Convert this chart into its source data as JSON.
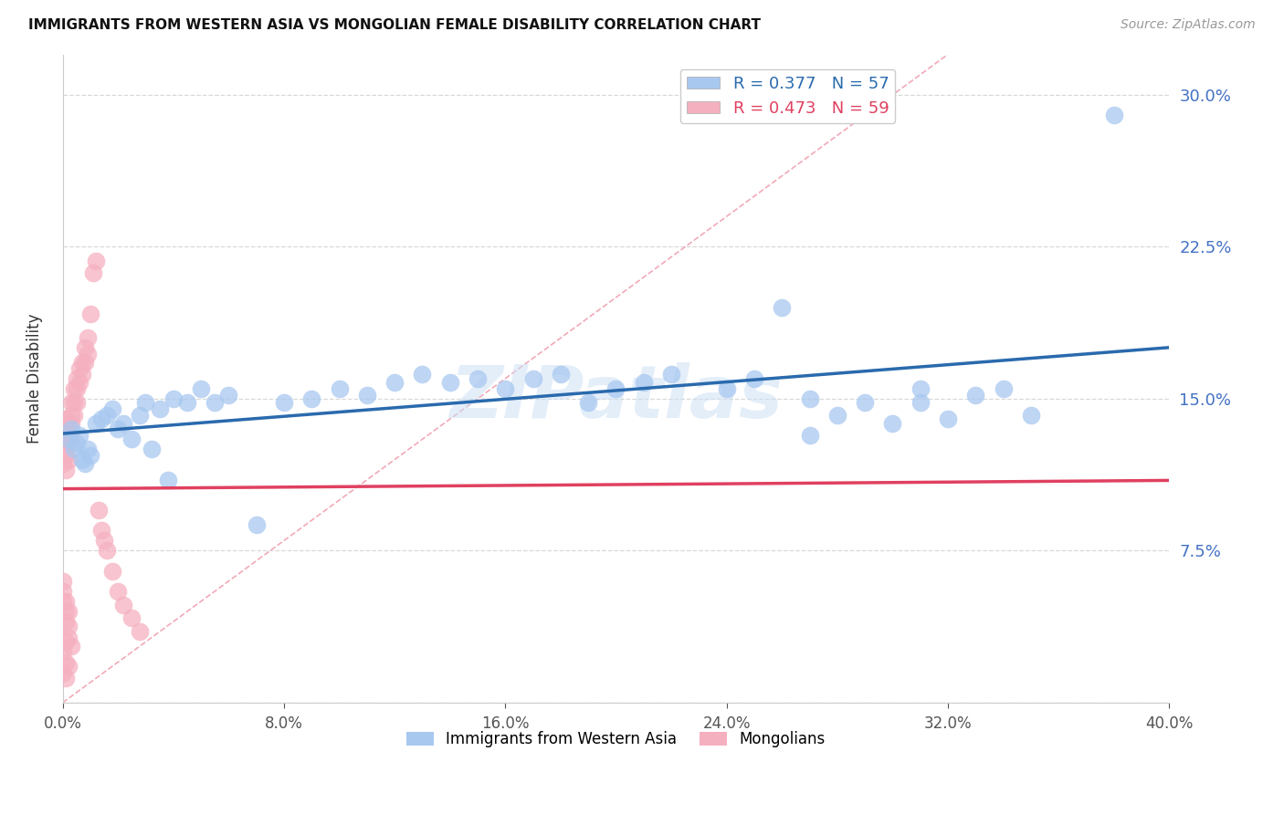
{
  "title": "IMMIGRANTS FROM WESTERN ASIA VS MONGOLIAN FEMALE DISABILITY CORRELATION CHART",
  "source": "Source: ZipAtlas.com",
  "ylabel": "Female Disability",
  "xlim": [
    0.0,
    0.4
  ],
  "ylim": [
    0.0,
    0.32
  ],
  "blue_R": 0.377,
  "blue_N": 57,
  "pink_R": 0.473,
  "pink_N": 59,
  "blue_color": "#a8c8f0",
  "pink_color": "#f5b0c0",
  "blue_line_color": "#2a6aad",
  "pink_line_color": "#e04060",
  "diag_line_color": "#f0a0b0",
  "watermark": "ZIPatlas",
  "legend_label_blue": "Immigrants from Western Asia",
  "legend_label_pink": "Mongolians",
  "ytick_vals": [
    0.0,
    0.075,
    0.15,
    0.225,
    0.3
  ],
  "xtick_vals": [
    0.0,
    0.08,
    0.16,
    0.24,
    0.32,
    0.4
  ],
  "right_axis_color": "#4472c4",
  "grid_color": "#d8d8d8",
  "blue_x": [
    0.002,
    0.003,
    0.004,
    0.005,
    0.006,
    0.007,
    0.008,
    0.009,
    0.01,
    0.012,
    0.014,
    0.016,
    0.018,
    0.02,
    0.022,
    0.025,
    0.028,
    0.03,
    0.032,
    0.035,
    0.038,
    0.04,
    0.045,
    0.05,
    0.055,
    0.06,
    0.07,
    0.08,
    0.09,
    0.1,
    0.11,
    0.12,
    0.13,
    0.14,
    0.15,
    0.16,
    0.17,
    0.18,
    0.19,
    0.2,
    0.21,
    0.22,
    0.24,
    0.25,
    0.26,
    0.27,
    0.28,
    0.29,
    0.3,
    0.31,
    0.32,
    0.33,
    0.34,
    0.35,
    0.27,
    0.31,
    0.38
  ],
  "blue_y": [
    0.13,
    0.135,
    0.125,
    0.128,
    0.132,
    0.12,
    0.118,
    0.125,
    0.122,
    0.138,
    0.14,
    0.142,
    0.145,
    0.135,
    0.138,
    0.13,
    0.142,
    0.148,
    0.125,
    0.145,
    0.11,
    0.15,
    0.148,
    0.155,
    0.148,
    0.152,
    0.088,
    0.148,
    0.15,
    0.155,
    0.152,
    0.158,
    0.162,
    0.158,
    0.16,
    0.155,
    0.16,
    0.162,
    0.148,
    0.155,
    0.158,
    0.162,
    0.155,
    0.16,
    0.195,
    0.15,
    0.142,
    0.148,
    0.138,
    0.155,
    0.14,
    0.152,
    0.155,
    0.142,
    0.132,
    0.148,
    0.29
  ],
  "pink_x": [
    0.0,
    0.0,
    0.0,
    0.0,
    0.001,
    0.001,
    0.001,
    0.001,
    0.001,
    0.002,
    0.002,
    0.002,
    0.002,
    0.003,
    0.003,
    0.003,
    0.003,
    0.004,
    0.004,
    0.004,
    0.005,
    0.005,
    0.005,
    0.006,
    0.006,
    0.007,
    0.007,
    0.008,
    0.008,
    0.009,
    0.009,
    0.01,
    0.011,
    0.012,
    0.013,
    0.014,
    0.015,
    0.016,
    0.018,
    0.02,
    0.022,
    0.025,
    0.028,
    0.0,
    0.001,
    0.001,
    0.002,
    0.002,
    0.003,
    0.0,
    0.0,
    0.001,
    0.002,
    0.001,
    0.0,
    0.001,
    0.002,
    0.0,
    0.001
  ],
  "pink_y": [
    0.13,
    0.125,
    0.122,
    0.118,
    0.135,
    0.128,
    0.122,
    0.115,
    0.14,
    0.138,
    0.132,
    0.128,
    0.12,
    0.148,
    0.142,
    0.138,
    0.13,
    0.155,
    0.148,
    0.142,
    0.16,
    0.155,
    0.148,
    0.165,
    0.158,
    0.168,
    0.162,
    0.175,
    0.168,
    0.18,
    0.172,
    0.192,
    0.212,
    0.218,
    0.095,
    0.085,
    0.08,
    0.075,
    0.065,
    0.055,
    0.048,
    0.042,
    0.035,
    0.05,
    0.045,
    0.04,
    0.038,
    0.032,
    0.028,
    0.06,
    0.055,
    0.05,
    0.045,
    0.03,
    0.025,
    0.02,
    0.018,
    0.015,
    0.012
  ]
}
